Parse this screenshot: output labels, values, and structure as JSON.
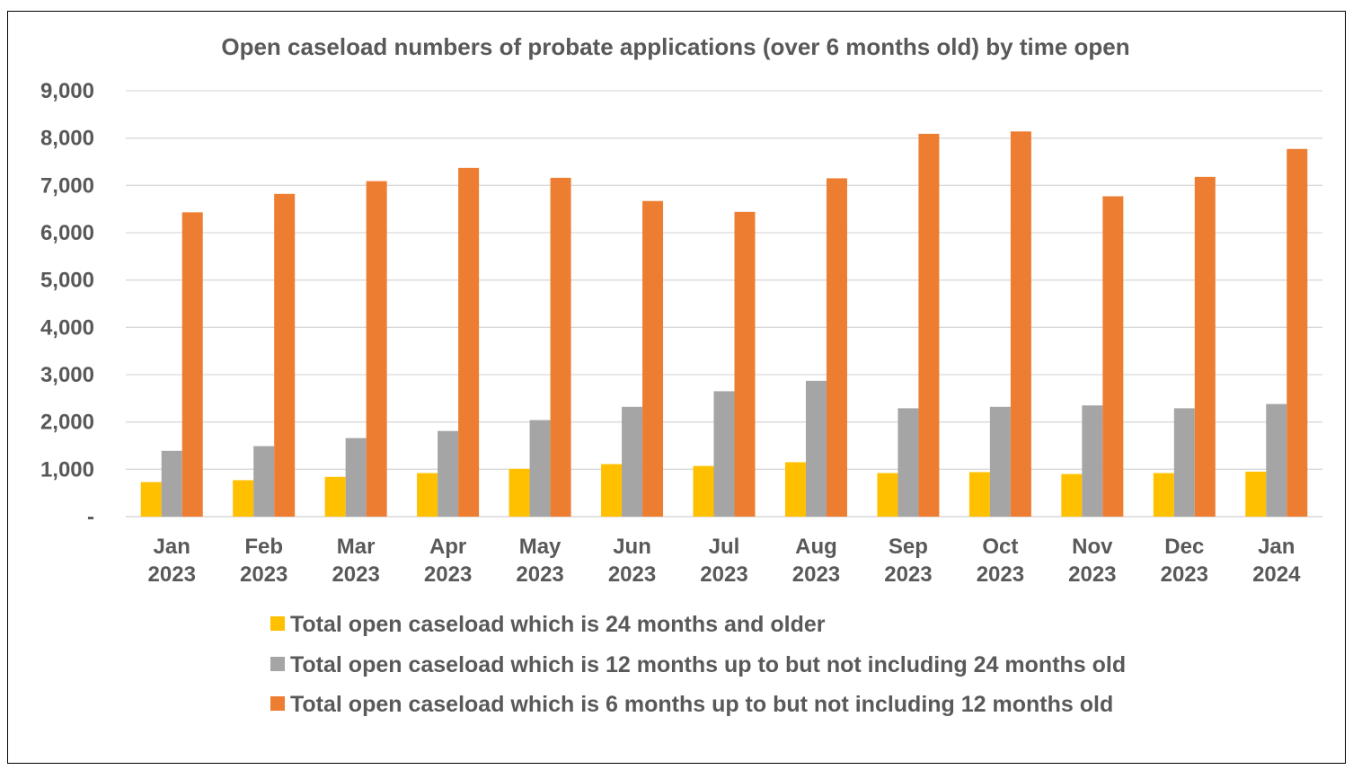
{
  "chart_data": {
    "type": "bar",
    "title": "Open caseload numbers of probate applications (over 6 months old) by time open",
    "categories": [
      [
        "Jan",
        "2023"
      ],
      [
        "Feb",
        "2023"
      ],
      [
        "Mar",
        "2023"
      ],
      [
        "Apr",
        "2023"
      ],
      [
        "May",
        "2023"
      ],
      [
        "Jun",
        "2023"
      ],
      [
        "Jul",
        "2023"
      ],
      [
        "Aug",
        "2023"
      ],
      [
        "Sep",
        "2023"
      ],
      [
        "Oct",
        "2023"
      ],
      [
        "Nov",
        "2023"
      ],
      [
        "Dec",
        "2023"
      ],
      [
        "Jan",
        "2024"
      ]
    ],
    "series": [
      {
        "name": "Total open caseload which is 24 months and older",
        "color": "#FFC000",
        "values": [
          730,
          770,
          840,
          920,
          1010,
          1110,
          1070,
          1150,
          920,
          940,
          900,
          920,
          950
        ]
      },
      {
        "name": "Total open caseload which is 12 months up to but not including 24 months old",
        "color": "#A5A5A5",
        "values": [
          1390,
          1490,
          1660,
          1810,
          2040,
          2320,
          2650,
          2870,
          2290,
          2320,
          2350,
          2290,
          2380
        ]
      },
      {
        "name": "Total open caseload which is 6 months up to but not including 12 months old",
        "color": "#ED7D31",
        "values": [
          6430,
          6820,
          7090,
          7370,
          7160,
          6670,
          6440,
          7150,
          8090,
          8140,
          6770,
          7180,
          7770
        ]
      }
    ],
    "ylim": [
      0,
      9000
    ],
    "yticks": [
      0,
      1000,
      2000,
      3000,
      4000,
      5000,
      6000,
      7000,
      8000,
      9000
    ],
    "ytick_labels": [
      "-",
      "1,000",
      "2,000",
      "3,000",
      "4,000",
      "5,000",
      "6,000",
      "7,000",
      "8,000",
      "9,000"
    ],
    "grid": true,
    "legend_position": "bottom"
  }
}
